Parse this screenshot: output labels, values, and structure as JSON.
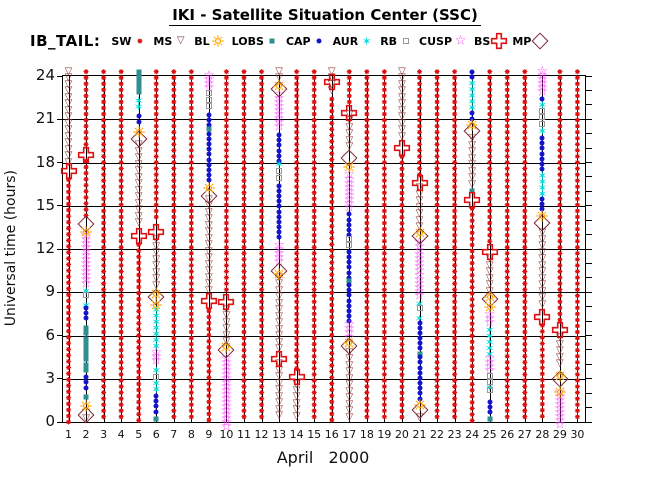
{
  "title": "IKI - Satellite Situation Center (SSC)",
  "dataset_label": "IB_TAIL:",
  "legend": [
    {
      "key": "sw",
      "label": "SW"
    },
    {
      "key": "ms",
      "label": "MS"
    },
    {
      "key": "bl",
      "label": "BL"
    },
    {
      "key": "lobs",
      "label": "LOBS"
    },
    {
      "key": "cap",
      "label": "CAP"
    },
    {
      "key": "aur",
      "label": "AUR"
    },
    {
      "key": "rb",
      "label": "RB"
    },
    {
      "key": "cusp",
      "label": "CUSP"
    },
    {
      "key": "bs",
      "label": "BS"
    },
    {
      "key": "mp",
      "label": "MP"
    }
  ],
  "colors": {
    "sw": "#dd1111",
    "ms": "#8b3a3a",
    "bl": "#ffa500",
    "lobs": "#2f9090",
    "cap": "#1414cc",
    "aur": "#00dddd",
    "rb": "#999999",
    "cusp": "#ff3fff",
    "bs": "#dd1111",
    "mp": "#7a2535"
  },
  "axes": {
    "y_label": "Universal time (hours)",
    "x_label": "April   2000",
    "y_ticks": [
      0,
      3,
      6,
      9,
      12,
      15,
      18,
      21,
      24
    ],
    "y_range": [
      0,
      24
    ],
    "x_ticks": [
      1,
      2,
      3,
      4,
      5,
      6,
      7,
      8,
      9,
      10,
      11,
      12,
      13,
      14,
      15,
      16,
      17,
      18,
      19,
      20,
      21,
      22,
      23,
      24,
      25,
      26,
      27,
      28,
      29,
      30
    ]
  },
  "chart_data": {
    "type": "scatter",
    "title": "IKI - Satellite Situation Center (SSC)",
    "series_label": "IB_TAIL",
    "x_unit": "day of April 2000",
    "y_unit": "hours UT",
    "region_keys": [
      "sw",
      "ms",
      "bl",
      "lobs",
      "cap",
      "aur",
      "rb",
      "cusp",
      "bs",
      "mp"
    ],
    "days": [
      {
        "day": 1,
        "segments": [
          [
            "ms",
            24.3,
            18.0
          ],
          [
            "sw",
            16.8,
            0
          ]
        ],
        "markers": [
          [
            "bs",
            17.4
          ]
        ]
      },
      {
        "day": 2,
        "segments": [
          [
            "sw",
            24.3,
            19.0
          ],
          [
            "sw",
            18.1,
            14.3
          ],
          [
            "cusp",
            12.9,
            9.4
          ],
          [
            "aur",
            9.1,
            9.1
          ],
          [
            "rb",
            8.8,
            8.4
          ],
          [
            "aur",
            8.1,
            8.1
          ],
          [
            "cap",
            7.9,
            6.9
          ],
          [
            "lobs",
            6.5,
            3.4
          ],
          [
            "cap",
            3.1,
            2.1
          ],
          [
            "lobs",
            1.7,
            1.7
          ],
          [
            "ms",
            0.2,
            0
          ]
        ],
        "markers": [
          [
            "bs",
            18.5
          ],
          [
            "mp",
            13.7
          ],
          [
            "bl",
            13.2
          ],
          [
            "bl",
            1.1
          ],
          [
            "mp",
            0.5
          ]
        ]
      },
      {
        "day": 3,
        "segments": [
          [
            "sw",
            24.3,
            0
          ]
        ],
        "markers": []
      },
      {
        "day": 4,
        "segments": [
          [
            "sw",
            24.3,
            0
          ]
        ],
        "markers": []
      },
      {
        "day": 5,
        "segments": [
          [
            "lobs",
            24.3,
            22.6
          ],
          [
            "aur",
            22.3,
            21.5
          ],
          [
            "cap",
            21.2,
            20.5
          ],
          [
            "ms",
            19.2,
            13.6
          ],
          [
            "sw",
            12.3,
            0
          ]
        ],
        "markers": [
          [
            "bl",
            20.1
          ],
          [
            "mp",
            19.6
          ],
          [
            "bs",
            12.9
          ]
        ]
      },
      {
        "day": 6,
        "segments": [
          [
            "sw",
            24.3,
            13.9
          ],
          [
            "ms",
            12.6,
            9.4
          ],
          [
            "aur",
            7.8,
            5.2
          ],
          [
            "cusp",
            4.8,
            4.0
          ],
          [
            "aur",
            3.6,
            3.4
          ],
          [
            "rb",
            3.1,
            3.1
          ],
          [
            "aur",
            2.7,
            2.2
          ],
          [
            "cap",
            1.8,
            0.7
          ],
          [
            "lobs",
            0.2,
            0.2
          ]
        ],
        "markers": [
          [
            "bs",
            13.2
          ],
          [
            "mp",
            8.7
          ],
          [
            "bl",
            8.9
          ],
          [
            "bl",
            8.1
          ]
        ]
      },
      {
        "day": 7,
        "segments": [
          [
            "sw",
            24.3,
            0
          ]
        ],
        "markers": []
      },
      {
        "day": 8,
        "segments": [
          [
            "sw",
            24.3,
            0
          ]
        ],
        "markers": []
      },
      {
        "day": 9,
        "segments": [
          [
            "cusp",
            24.0,
            23.0
          ],
          [
            "rb",
            22.8,
            21.5
          ],
          [
            "cap",
            21.3,
            20.5
          ],
          [
            "lobs",
            20.3,
            20.3
          ],
          [
            "cap",
            20.0,
            16.7
          ],
          [
            "ms",
            15.4,
            9.0
          ],
          [
            "sw",
            7.7,
            0
          ]
        ],
        "markers": [
          [
            "bl",
            16.2
          ],
          [
            "mp",
            15.7
          ],
          [
            "bs",
            8.4
          ]
        ]
      },
      {
        "day": 10,
        "segments": [
          [
            "sw",
            24.3,
            8.9
          ],
          [
            "ms",
            7.8,
            5.5
          ],
          [
            "cusp",
            4.4,
            -0.4
          ]
        ],
        "markers": [
          [
            "bs",
            8.3
          ],
          [
            "mp",
            5.0
          ],
          [
            "bl",
            5.2
          ]
        ]
      },
      {
        "day": 11,
        "segments": [
          [
            "sw",
            24.3,
            0
          ]
        ],
        "markers": []
      },
      {
        "day": 12,
        "segments": [
          [
            "sw",
            24.3,
            0
          ]
        ],
        "markers": []
      },
      {
        "day": 13,
        "segments": [
          [
            "ms",
            24.3,
            23.7
          ],
          [
            "cusp",
            22.7,
            20.3
          ],
          [
            "cap",
            19.9,
            18.1
          ],
          [
            "aur",
            17.9,
            17.9
          ],
          [
            "rb",
            17.4,
            16.7
          ],
          [
            "cap",
            16.4,
            12.6
          ],
          [
            "cusp",
            12.2,
            10.9
          ],
          [
            "ms",
            10.0,
            4.8
          ],
          [
            "ms",
            4.0,
            0
          ]
        ],
        "markers": [
          [
            "mp",
            23.1
          ],
          [
            "bl",
            23.3
          ],
          [
            "mp",
            10.5
          ],
          [
            "bl",
            10.3
          ],
          [
            "bs",
            4.4
          ]
        ]
      },
      {
        "day": 14,
        "segments": [
          [
            "sw",
            24.3,
            3.5
          ],
          [
            "ms",
            2.6,
            0
          ]
        ],
        "markers": [
          [
            "bs",
            3.1
          ]
        ]
      },
      {
        "day": 15,
        "segments": [
          [
            "sw",
            24.3,
            0
          ]
        ],
        "markers": []
      },
      {
        "day": 16,
        "segments": [
          [
            "ms",
            24.3,
            22.8
          ],
          [
            "sw",
            22.4,
            0
          ]
        ],
        "markers": [
          [
            "bs",
            23.6
          ]
        ]
      },
      {
        "day": 17,
        "segments": [
          [
            "sw",
            24.3,
            21.9
          ],
          [
            "ms",
            21.3,
            18.7
          ],
          [
            "cusp",
            17.1,
            14.8
          ],
          [
            "cap",
            14.4,
            12.8
          ],
          [
            "rb",
            12.7,
            12.0
          ],
          [
            "cap",
            11.8,
            9.9
          ],
          [
            "lobs",
            9.8,
            9.8
          ],
          [
            "cap",
            9.5,
            6.9
          ],
          [
            "cusp",
            6.7,
            5.8
          ],
          [
            "ms",
            4.8,
            0
          ]
        ],
        "markers": [
          [
            "bs",
            21.4
          ],
          [
            "mp",
            18.3
          ],
          [
            "bl",
            17.7
          ],
          [
            "mp",
            5.3
          ],
          [
            "bl",
            5.5
          ]
        ]
      },
      {
        "day": 18,
        "segments": [
          [
            "sw",
            24.3,
            0
          ]
        ],
        "markers": []
      },
      {
        "day": 19,
        "segments": [
          [
            "sw",
            24.3,
            0
          ]
        ],
        "markers": []
      },
      {
        "day": 20,
        "segments": [
          [
            "ms",
            24.3,
            19.4
          ],
          [
            "sw",
            18.4,
            0
          ]
        ],
        "markers": [
          [
            "bs",
            19.0
          ]
        ]
      },
      {
        "day": 21,
        "segments": [
          [
            "sw",
            24.3,
            17.0
          ],
          [
            "ms",
            16.2,
            13.4
          ],
          [
            "cusp",
            12.4,
            8.5
          ],
          [
            "aur",
            8.2,
            8.2
          ],
          [
            "rb",
            7.9,
            7.5
          ],
          [
            "aur",
            7.2,
            7.2
          ],
          [
            "cap",
            6.9,
            4.9
          ],
          [
            "lobs",
            4.7,
            4.7
          ],
          [
            "cap",
            4.5,
            1.4
          ],
          [
            "ms",
            0.3,
            0
          ]
        ],
        "markers": [
          [
            "bs",
            16.6
          ],
          [
            "mp",
            12.9
          ],
          [
            "bl",
            13.1
          ],
          [
            "bl",
            1.2
          ],
          [
            "mp",
            0.8
          ]
        ]
      },
      {
        "day": 22,
        "segments": [
          [
            "sw",
            24.3,
            0
          ]
        ],
        "markers": []
      },
      {
        "day": 23,
        "segments": [
          [
            "sw",
            24.3,
            0
          ]
        ],
        "markers": []
      },
      {
        "day": 24,
        "segments": [
          [
            "cap",
            24.3,
            23.8
          ],
          [
            "aur",
            23.5,
            21.7
          ],
          [
            "cap",
            21.4,
            21.0
          ],
          [
            "ms",
            19.6,
            16.3
          ],
          [
            "lobs",
            16.0,
            16.0
          ],
          [
            "sw",
            14.8,
            0
          ]
        ],
        "markers": [
          [
            "bl",
            20.6
          ],
          [
            "mp",
            20.2
          ],
          [
            "bs",
            15.4
          ]
        ]
      },
      {
        "day": 25,
        "segments": [
          [
            "sw",
            24.3,
            12.3
          ],
          [
            "ms",
            11.3,
            9.0
          ],
          [
            "cusp",
            7.4,
            6.7
          ],
          [
            "aur",
            6.4,
            4.7
          ],
          [
            "cusp",
            4.4,
            3.5
          ],
          [
            "rb",
            3.2,
            2.6
          ],
          [
            "aur",
            2.4,
            2.4
          ],
          [
            "rb",
            2.2,
            1.8
          ],
          [
            "cap",
            1.4,
            0.6
          ],
          [
            "lobs",
            0.2,
            0.2
          ]
        ],
        "markers": [
          [
            "bs",
            11.8
          ],
          [
            "mp",
            8.5
          ],
          [
            "bl",
            8.7
          ],
          [
            "bl",
            8.0
          ]
        ]
      },
      {
        "day": 26,
        "segments": [
          [
            "sw",
            24.3,
            0
          ]
        ],
        "markers": []
      },
      {
        "day": 27,
        "segments": [
          [
            "sw",
            24.3,
            0
          ]
        ],
        "markers": []
      },
      {
        "day": 28,
        "segments": [
          [
            "cusp",
            24.3,
            22.7
          ],
          [
            "cap",
            22.4,
            22.4
          ],
          [
            "aur",
            22.0,
            22.0
          ],
          [
            "rb",
            21.6,
            20.6
          ],
          [
            "aur",
            20.2,
            20.2
          ],
          [
            "cap",
            19.7,
            17.3
          ],
          [
            "aur",
            17.1,
            15.8
          ],
          [
            "cap",
            15.5,
            14.6
          ],
          [
            "ms",
            13.1,
            8.0
          ],
          [
            "sw",
            6.7,
            0
          ]
        ],
        "markers": [
          [
            "bl",
            14.3
          ],
          [
            "mp",
            13.8
          ],
          [
            "bs",
            7.3
          ]
        ]
      },
      {
        "day": 29,
        "segments": [
          [
            "sw",
            24.3,
            6.9
          ],
          [
            "ms",
            5.8,
            3.6
          ],
          [
            "cusp",
            2.0,
            -0.5
          ]
        ],
        "markers": [
          [
            "bs",
            6.4
          ],
          [
            "mp",
            3.0
          ],
          [
            "bl",
            3.2
          ],
          [
            "bl",
            2.1
          ]
        ]
      },
      {
        "day": 30,
        "segments": [
          [
            "sw",
            24.3,
            0
          ]
        ],
        "markers": []
      }
    ]
  }
}
